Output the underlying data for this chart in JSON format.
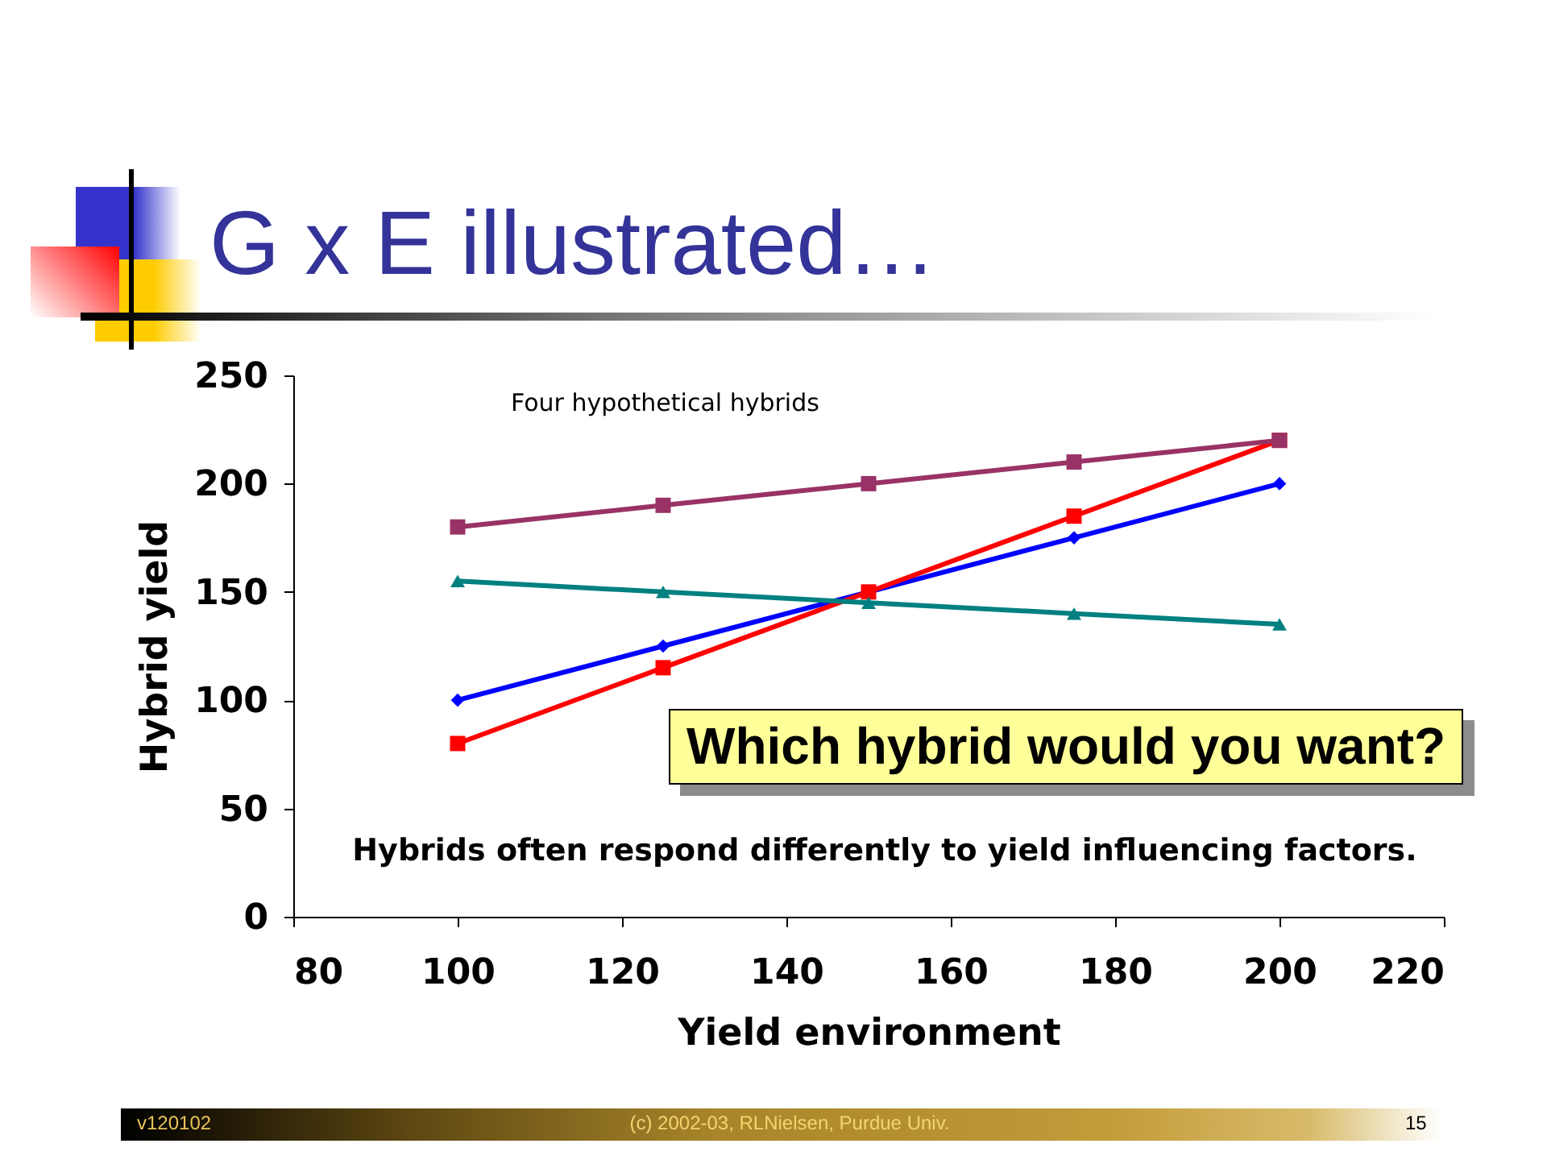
{
  "chart_data": {
    "type": "line",
    "title": "G x E illustrated…",
    "xlabel": "Yield environment",
    "ylabel": "Hybrid yield",
    "x": [
      100,
      125,
      150,
      175,
      200
    ],
    "series": [
      {
        "color": "#0000ff",
        "marker": "diamond",
        "values": [
          100,
          125,
          150,
          175,
          200
        ]
      },
      {
        "color": "#ff0000",
        "marker": "square",
        "values": [
          80,
          115,
          150,
          185,
          220
        ]
      },
      {
        "color": "#008080",
        "marker": "triangle",
        "values": [
          155,
          150,
          145,
          140,
          135
        ]
      },
      {
        "color": "#993366",
        "marker": "square",
        "values": [
          180,
          190,
          200,
          210,
          220
        ]
      }
    ],
    "xlim": [
      80,
      220
    ],
    "xticks": [
      80,
      100,
      120,
      140,
      160,
      180,
      200,
      220
    ],
    "ylim": [
      0,
      250
    ],
    "yticks": [
      0,
      50,
      100,
      150,
      200,
      250
    ],
    "line_style": "solid",
    "annotations": [
      "Four hypothetical hybrids",
      "Which hybrid would you want?",
      "Hybrids often respond differently to yield influencing factors.",
      "v120102",
      "(c) 2002-03, RLNielsen, Purdue Univ.",
      "15"
    ]
  }
}
